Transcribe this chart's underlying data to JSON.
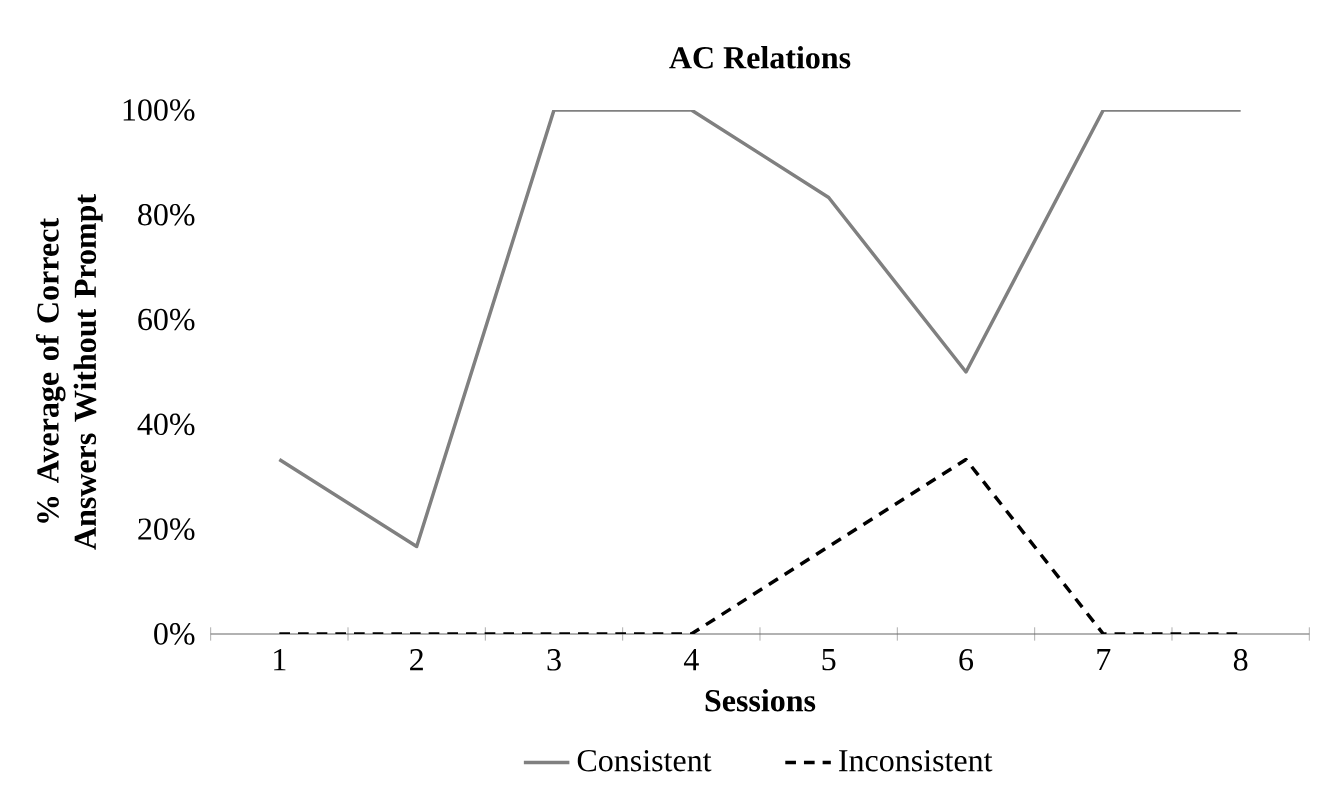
{
  "chart_data": {
    "type": "line",
    "title": "AC Relations",
    "xlabel": "Sessions",
    "ylabel": "% Average of Correct Answers Without Prompt",
    "categories": [
      "1",
      "2",
      "3",
      "4",
      "5",
      "6",
      "7",
      "8"
    ],
    "series": [
      {
        "name": "Consistent",
        "color": "#808080",
        "line_style": "solid",
        "values": [
          33.3,
          16.7,
          100,
          100,
          83.3,
          50,
          100,
          100
        ]
      },
      {
        "name": "Inconsistent",
        "color": "#000000",
        "line_style": "dashed",
        "values": [
          0,
          0,
          0,
          0,
          16.7,
          33.3,
          0,
          0
        ]
      }
    ],
    "ylim": [
      0,
      100
    ],
    "yticks": [
      {
        "value": 0,
        "label": "0%"
      },
      {
        "value": 20,
        "label": "20%"
      },
      {
        "value": 40,
        "label": "40%"
      },
      {
        "value": 60,
        "label": "60%"
      },
      {
        "value": 80,
        "label": "80%"
      },
      {
        "value": 100,
        "label": "100%"
      }
    ],
    "grid": false,
    "legend": "bottom",
    "marker": "none"
  }
}
